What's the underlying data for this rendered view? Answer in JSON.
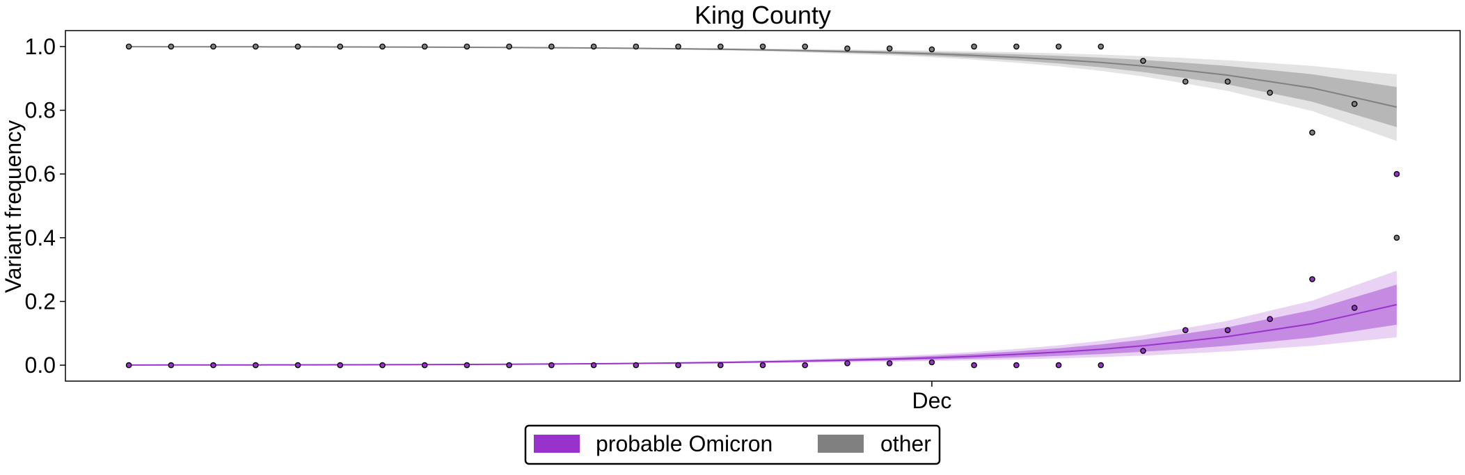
{
  "chart_data": {
    "type": "line",
    "title": "King County",
    "xlabel": "",
    "ylabel": "Variant frequency",
    "ylim": [
      -0.05,
      1.05
    ],
    "yticks": [
      0.0,
      0.2,
      0.4,
      0.6,
      0.8,
      1.0
    ],
    "ytick_labels": [
      "0.0",
      "0.2",
      "0.4",
      "0.6",
      "0.8",
      "1.0"
    ],
    "xticks": [
      {
        "label": "Dec",
        "x": 19
      }
    ],
    "xlim": [
      -1.5,
      31.5
    ],
    "grid": false,
    "legend_placement": "bottom-center (below axes)",
    "colors": {
      "omicron": "#9932CC",
      "other": "#808080"
    },
    "x": [
      0,
      1,
      2,
      3,
      4,
      5,
      6,
      7,
      8,
      9,
      10,
      11,
      12,
      13,
      14,
      15,
      16,
      17,
      18,
      19,
      20,
      21,
      22,
      23,
      24,
      25,
      26,
      27,
      28,
      29,
      30
    ],
    "series": [
      {
        "name": "probable Omicron",
        "color": "#9932CC",
        "observed": [
          0,
          0,
          0,
          0,
          0,
          0,
          0,
          0,
          0,
          0,
          0,
          0,
          0,
          0,
          0,
          0,
          0,
          0.006,
          0.006,
          0.009,
          0,
          0,
          0,
          0,
          0.045,
          0.11,
          0.11,
          0.145,
          0.27,
          0.18,
          0.6
        ],
        "fit": [
          0.0005,
          0.0006,
          0.0007,
          0.0009,
          0.0011,
          0.0013,
          0.0016,
          0.002,
          0.0024,
          0.003,
          0.0037,
          0.0045,
          0.0056,
          0.0069,
          0.0085,
          0.0105,
          0.013,
          0.016,
          0.019,
          0.023,
          0.028,
          0.034,
          0.041,
          0.05,
          0.061,
          0.075,
          0.09,
          0.11,
          0.13,
          0.16,
          0.19
        ],
        "band_inner": [
          [
            0.0004,
            0.0006
          ],
          [
            0.0005,
            0.0007
          ],
          [
            0.0006,
            0.0008
          ],
          [
            0.0008,
            0.001
          ],
          [
            0.0009,
            0.0013
          ],
          [
            0.0011,
            0.0015
          ],
          [
            0.0013,
            0.0019
          ],
          [
            0.0016,
            0.0024
          ],
          [
            0.002,
            0.0029
          ],
          [
            0.0024,
            0.0036
          ],
          [
            0.003,
            0.0044
          ],
          [
            0.0036,
            0.0054
          ],
          [
            0.0045,
            0.0067
          ],
          [
            0.0055,
            0.0083
          ],
          [
            0.0067,
            0.0103
          ],
          [
            0.0082,
            0.0128
          ],
          [
            0.01,
            0.016
          ],
          [
            0.0122,
            0.0198
          ],
          [
            0.0143,
            0.0237
          ],
          [
            0.0171,
            0.0289
          ],
          [
            0.0205,
            0.0355
          ],
          [
            0.0245,
            0.0435
          ],
          [
            0.029,
            0.053
          ],
          [
            0.035,
            0.065
          ],
          [
            0.042,
            0.08
          ],
          [
            0.051,
            0.099
          ],
          [
            0.061,
            0.119
          ],
          [
            0.074,
            0.146
          ],
          [
            0.087,
            0.173
          ],
          [
            0.107,
            0.213
          ],
          [
            0.127,
            0.253
          ]
        ],
        "band_outer": [
          [
            0.0003,
            0.0007
          ],
          [
            0.0004,
            0.0008
          ],
          [
            0.0005,
            0.001
          ],
          [
            0.0006,
            0.0012
          ],
          [
            0.0007,
            0.0015
          ],
          [
            0.0009,
            0.0018
          ],
          [
            0.001,
            0.0022
          ],
          [
            0.0013,
            0.0028
          ],
          [
            0.0016,
            0.0034
          ],
          [
            0.0019,
            0.0042
          ],
          [
            0.0024,
            0.0052
          ],
          [
            0.0029,
            0.0063
          ],
          [
            0.0035,
            0.0078
          ],
          [
            0.0043,
            0.0097
          ],
          [
            0.0052,
            0.0121
          ],
          [
            0.0063,
            0.0151
          ],
          [
            0.0077,
            0.0188
          ],
          [
            0.0093,
            0.0232
          ],
          [
            0.0108,
            0.0277
          ],
          [
            0.0128,
            0.0338
          ],
          [
            0.0152,
            0.0415
          ],
          [
            0.018,
            0.051
          ],
          [
            0.0212,
            0.0622
          ],
          [
            0.0253,
            0.0763
          ],
          [
            0.0301,
            0.0938
          ],
          [
            0.0362,
            0.1161
          ],
          [
            0.0432,
            0.1393
          ],
          [
            0.0518,
            0.1711
          ],
          [
            0.0607,
            0.2024
          ],
          [
            0.0742,
            0.2496
          ],
          [
            0.0875,
            0.2963
          ]
        ]
      },
      {
        "name": "other",
        "color": "#808080",
        "observed": [
          1,
          1,
          1,
          1,
          1,
          1,
          1,
          1,
          1,
          1,
          1,
          1,
          1,
          1,
          1,
          1,
          1,
          0.994,
          0.994,
          0.991,
          1,
          1,
          1,
          1,
          0.955,
          0.89,
          0.89,
          0.855,
          0.73,
          0.82,
          0.4
        ],
        "fit": [
          0.9995,
          0.9994,
          0.9993,
          0.9991,
          0.9989,
          0.9987,
          0.9984,
          0.998,
          0.9976,
          0.997,
          0.9963,
          0.9955,
          0.9944,
          0.9931,
          0.9915,
          0.9895,
          0.987,
          0.984,
          0.981,
          0.977,
          0.972,
          0.966,
          0.959,
          0.95,
          0.939,
          0.925,
          0.91,
          0.89,
          0.87,
          0.84,
          0.81
        ],
        "band_inner": [
          [
            0.9994,
            0.9996
          ],
          [
            0.9993,
            0.9995
          ],
          [
            0.9992,
            0.9994
          ],
          [
            0.999,
            0.9992
          ],
          [
            0.9987,
            0.9991
          ],
          [
            0.9985,
            0.9989
          ],
          [
            0.9981,
            0.9987
          ],
          [
            0.9976,
            0.9984
          ],
          [
            0.9971,
            0.998
          ],
          [
            0.9964,
            0.9976
          ],
          [
            0.9956,
            0.997
          ],
          [
            0.9946,
            0.9964
          ],
          [
            0.9933,
            0.9955
          ],
          [
            0.9917,
            0.9945
          ],
          [
            0.9897,
            0.9933
          ],
          [
            0.9872,
            0.9918
          ],
          [
            0.984,
            0.99
          ],
          [
            0.9802,
            0.9878
          ],
          [
            0.9763,
            0.9857
          ],
          [
            0.9711,
            0.9829
          ],
          [
            0.9645,
            0.9795
          ],
          [
            0.9565,
            0.9755
          ],
          [
            0.947,
            0.971
          ],
          [
            0.935,
            0.965
          ],
          [
            0.92,
            0.958
          ],
          [
            0.901,
            0.949
          ],
          [
            0.881,
            0.939
          ],
          [
            0.854,
            0.926
          ],
          [
            0.827,
            0.913
          ],
          [
            0.787,
            0.893
          ],
          [
            0.747,
            0.873
          ]
        ],
        "band_outer": [
          [
            0.9993,
            0.9997
          ],
          [
            0.9992,
            0.9996
          ],
          [
            0.999,
            0.9995
          ],
          [
            0.9988,
            0.9994
          ],
          [
            0.9985,
            0.9993
          ],
          [
            0.9982,
            0.9991
          ],
          [
            0.9978,
            0.999
          ],
          [
            0.9972,
            0.9987
          ],
          [
            0.9966,
            0.9984
          ],
          [
            0.9958,
            0.9981
          ],
          [
            0.9948,
            0.9976
          ],
          [
            0.9937,
            0.9971
          ],
          [
            0.9922,
            0.9965
          ],
          [
            0.9903,
            0.9957
          ],
          [
            0.9879,
            0.9948
          ],
          [
            0.9849,
            0.9937
          ],
          [
            0.9812,
            0.9923
          ],
          [
            0.9768,
            0.9907
          ],
          [
            0.9723,
            0.9892
          ],
          [
            0.9662,
            0.9872
          ],
          [
            0.9585,
            0.9848
          ],
          [
            0.949,
            0.982
          ],
          [
            0.9378,
            0.9788
          ],
          [
            0.9237,
            0.9747
          ],
          [
            0.9062,
            0.9699
          ],
          [
            0.8839,
            0.9638
          ],
          [
            0.8607,
            0.9568
          ],
          [
            0.8289,
            0.9482
          ],
          [
            0.7976,
            0.9393
          ],
          [
            0.7504,
            0.9258
          ],
          [
            0.7037,
            0.9125
          ]
        ]
      }
    ]
  }
}
